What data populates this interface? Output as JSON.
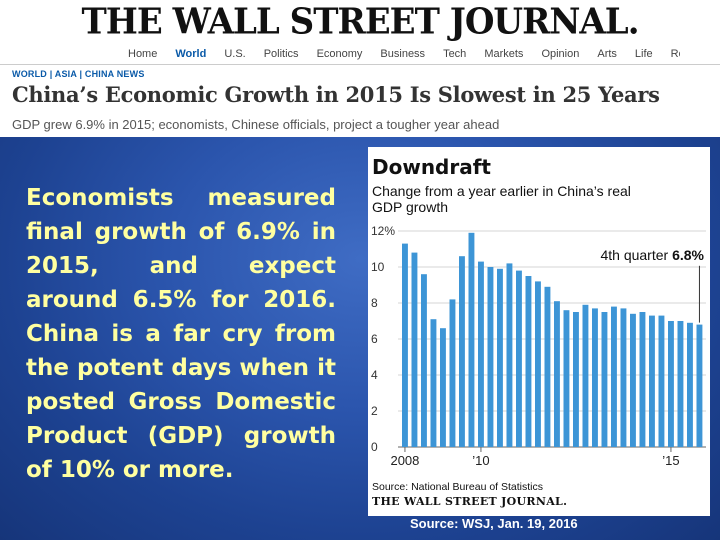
{
  "wsj": {
    "masthead": "THE WALL STREET JOURNAL.",
    "nav": [
      "Home",
      "World",
      "U.S.",
      "Politics",
      "Economy",
      "Business",
      "Tech",
      "Markets",
      "Opinion",
      "Arts",
      "Life",
      "Real Estate"
    ],
    "nav_active": "World",
    "section": "WORLD | ASIA | CHINA NEWS",
    "headline": "China’s Economic Growth in 2015 Is Slowest in 25 Years",
    "subhead": "GDP grew 6.9% in 2015; economists, Chinese officials, project a tougher year ahead"
  },
  "body_text": "Economists measured final growth of 6.9% in 2015, and expect around 6.5% for 2016. China is a far cry from the potent days when it posted Gross Domestic Product (GDP) growth of 10% or more.",
  "slide_source": "Source: WSJ, Jan. 19, 2016",
  "chart": {
    "title": "Downdraft",
    "subtitle": "Change from a year earlier in China’s real GDP growth",
    "source": "Source: National Bureau of Statistics",
    "brand": "THE WALL STREET JOURNAL.",
    "bar_color": "#3d95d6"
  },
  "chart_data": {
    "type": "bar",
    "title": "Downdraft",
    "subtitle": "Change from a year earlier in China’s real GDP growth",
    "xlabel": "",
    "ylabel": "",
    "ylim": [
      0,
      12
    ],
    "ytick_labels": [
      "12%",
      "10",
      "8",
      "6",
      "4",
      "2",
      "0"
    ],
    "ytick_values": [
      12,
      10,
      8,
      6,
      4,
      2,
      0
    ],
    "xtick_labels": [
      {
        "label": "2008",
        "index": 0
      },
      {
        "label": "’10",
        "index": 8
      },
      {
        "label": "’15",
        "index": 28
      }
    ],
    "categories": [
      "2008Q1",
      "2008Q2",
      "2008Q3",
      "2008Q4",
      "2009Q1",
      "2009Q2",
      "2009Q3",
      "2009Q4",
      "2010Q1",
      "2010Q2",
      "2010Q3",
      "2010Q4",
      "2011Q1",
      "2011Q2",
      "2011Q3",
      "2011Q4",
      "2012Q1",
      "2012Q2",
      "2012Q3",
      "2012Q4",
      "2013Q1",
      "2013Q2",
      "2013Q3",
      "2013Q4",
      "2014Q1",
      "2014Q2",
      "2014Q3",
      "2014Q4",
      "2015Q1",
      "2015Q2",
      "2015Q3",
      "2015Q4"
    ],
    "values": [
      11.3,
      10.8,
      9.6,
      7.1,
      6.6,
      8.2,
      10.6,
      11.9,
      10.3,
      10.0,
      9.9,
      10.2,
      9.8,
      9.5,
      9.2,
      8.9,
      8.1,
      7.6,
      7.5,
      7.9,
      7.7,
      7.5,
      7.8,
      7.7,
      7.4,
      7.5,
      7.3,
      7.3,
      7.0,
      7.0,
      6.9,
      6.8
    ],
    "annotation": {
      "prefix": "4th quarter ",
      "value": "6.8%"
    },
    "grid": true
  }
}
